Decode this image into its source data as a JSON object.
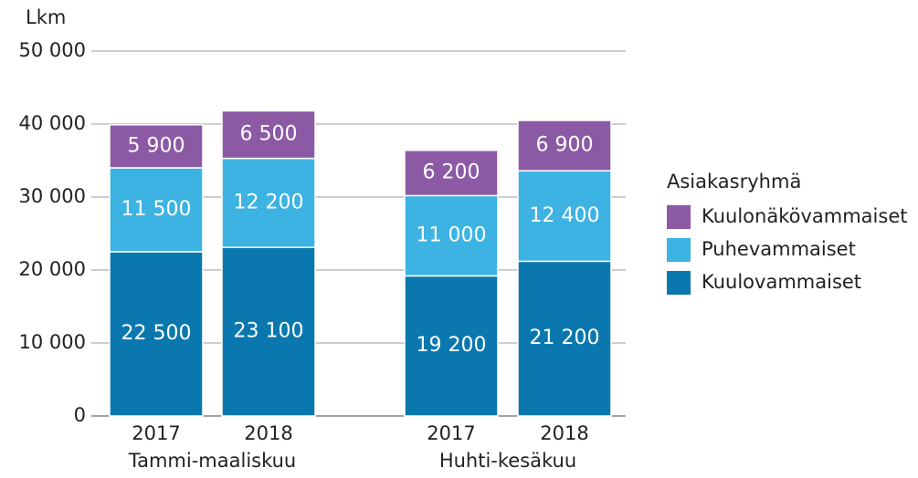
{
  "chart_data": {
    "type": "stacked_bar",
    "y_axis_label": "Lkm",
    "categories": [
      "2017",
      "2018",
      "2017",
      "2018"
    ],
    "groups": [
      "Tammi-maaliskuu",
      "Huhti-kesäkuu"
    ],
    "legend_title": "Asiakasryhmä",
    "ylim": [
      0,
      50000
    ],
    "yticks": [
      0,
      {
        "value": 10000,
        "label": "10 000"
      },
      {
        "value": 20000,
        "label": "20 000"
      },
      {
        "value": 30000,
        "label": "30 000"
      },
      {
        "value": 40000,
        "label": "40 000"
      },
      {
        "value": 50000,
        "label": "50 000"
      }
    ],
    "grid": true,
    "legend": "right",
    "series": [
      {
        "name": "Kuulovammaiset",
        "color": "#0a78ae",
        "values": [
          22500,
          23100,
          19200,
          21200
        ],
        "value_labels": [
          "22 500",
          "23 100",
          "19 200",
          "21 200"
        ]
      },
      {
        "name": "Puhevammaiset",
        "color": "#3cb3e3",
        "values": [
          11500,
          12200,
          11000,
          12400
        ],
        "value_labels": [
          "11 500",
          "12 200",
          "11 000",
          "12 400"
        ]
      },
      {
        "name": "Kuulonäkövammaiset",
        "color": "#8c5aa5",
        "values": [
          5900,
          6500,
          6200,
          6900
        ],
        "value_labels": [
          "5 900",
          "6 500",
          "6 200",
          "6 900"
        ]
      }
    ]
  }
}
